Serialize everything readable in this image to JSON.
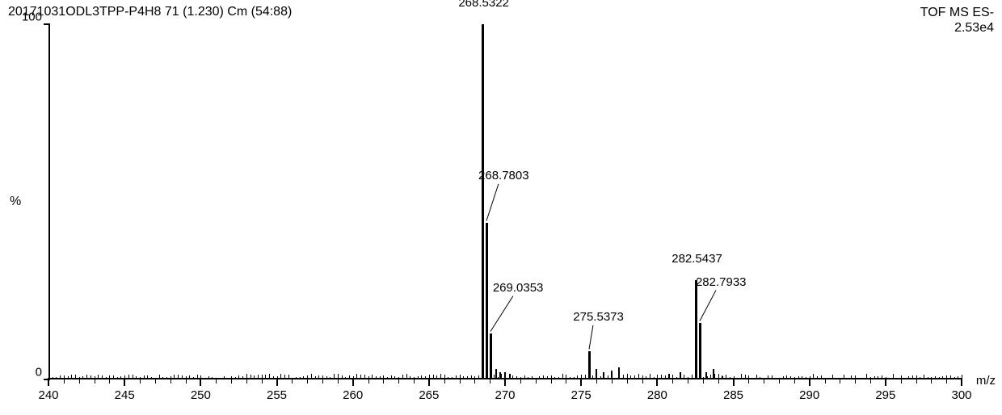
{
  "header": {
    "left": "20171031ODL3TPP-P4H8 71 (1.230) Cm (54:88)",
    "right_line1": "TOF MS ES-",
    "right_line2": "2.53e4"
  },
  "chart": {
    "type": "mass-spectrum",
    "background_color": "#ffffff",
    "axis_color": "#000000",
    "peak_color": "#000000",
    "label_fontsize": 15,
    "x": {
      "min": 240,
      "max": 300,
      "major_step": 5,
      "minor_step": 1,
      "title": "m/z"
    },
    "y": {
      "min": 0,
      "max": 100,
      "ticks": [
        0,
        100
      ],
      "title": "%"
    },
    "peaks": [
      {
        "mz": 268.5322,
        "intensity": 100,
        "label": "268.5322",
        "label_dx": 0,
        "label_dy": -18,
        "callout": false
      },
      {
        "mz": 268.7803,
        "intensity": 44,
        "label": "268.7803",
        "label_dx": 20,
        "label_dy": -50,
        "callout": true
      },
      {
        "mz": 269.0353,
        "intensity": 13,
        "label": "269.0353",
        "label_dx": 33,
        "label_dy": -48,
        "callout": true
      },
      {
        "mz": 275.5373,
        "intensity": 8,
        "label": "275.5373",
        "label_dx": 10,
        "label_dy": -34,
        "callout": true
      },
      {
        "mz": 282.5437,
        "intensity": 28,
        "label": "282.5437",
        "label_dx": 0,
        "label_dy": -18,
        "callout": false
      },
      {
        "mz": 282.7933,
        "intensity": 16,
        "label": "282.7933",
        "label_dx": 25,
        "label_dy": -42,
        "callout": true
      }
    ],
    "minor_peaks": [
      {
        "mz": 269.4,
        "intensity": 3
      },
      {
        "mz": 269.7,
        "intensity": 2
      },
      {
        "mz": 270.0,
        "intensity": 2
      },
      {
        "mz": 270.3,
        "intensity": 1.5
      },
      {
        "mz": 276.0,
        "intensity": 3
      },
      {
        "mz": 276.5,
        "intensity": 2
      },
      {
        "mz": 277.0,
        "intensity": 2.5
      },
      {
        "mz": 277.5,
        "intensity": 3.5
      },
      {
        "mz": 280.8,
        "intensity": 1.5
      },
      {
        "mz": 281.5,
        "intensity": 2
      },
      {
        "mz": 283.2,
        "intensity": 2
      },
      {
        "mz": 283.7,
        "intensity": 3
      },
      {
        "mz": 284.3,
        "intensity": 1
      }
    ],
    "noise_height": 1.2
  }
}
